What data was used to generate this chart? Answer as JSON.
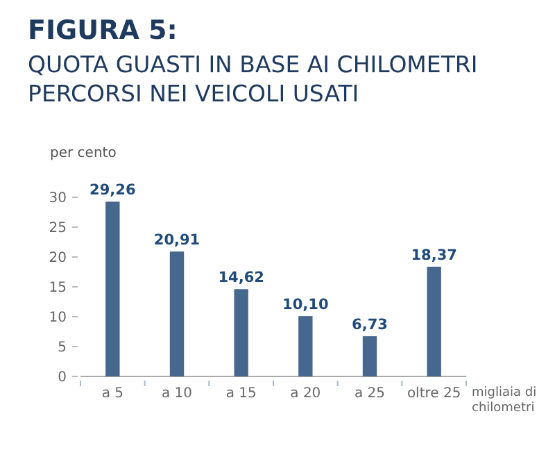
{
  "chart_data": {
    "type": "bar",
    "title": "FIGURA 5:",
    "subtitle": "QUOTA GUASTI IN BASE AI CHILOMETRI PERCORSI NEI VEICOLI USATI",
    "ylabel": "per cento",
    "xlabel": "migliaia di chilometri",
    "categories": [
      "a 5",
      "a 10",
      "a 15",
      "a 20",
      "a 25",
      "oltre 25"
    ],
    "values": [
      29.26,
      20.91,
      14.62,
      10.1,
      6.73,
      18.37
    ],
    "value_labels": [
      "29,26",
      "20,91",
      "14,62",
      "10,10",
      "6,73",
      "18,37"
    ],
    "color": "#46688e",
    "ylim": [
      0,
      30
    ],
    "yticks": [
      0,
      5,
      10,
      15,
      20,
      25,
      30
    ],
    "grid": false
  }
}
